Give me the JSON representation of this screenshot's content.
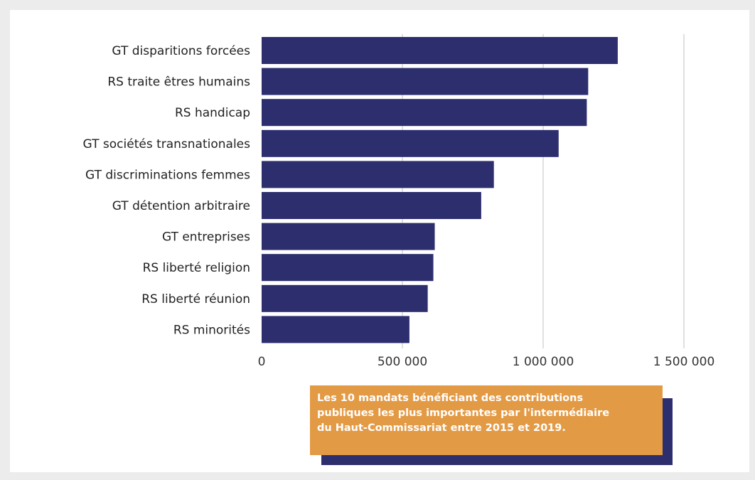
{
  "chart_data": {
    "type": "bar",
    "orientation": "horizontal",
    "categories": [
      "GT disparitions forcées",
      "RS traite êtres humains",
      "RS handicap",
      "GT sociétés transnationales",
      "GT discriminations femmes",
      "GT détention arbitraire",
      "GT entreprises",
      "RS liberté religion",
      "RS liberté réunion",
      "RS minorités"
    ],
    "values": [
      1265000,
      1160000,
      1155000,
      1055000,
      825000,
      780000,
      615000,
      610000,
      590000,
      525000
    ],
    "xlim": [
      0,
      1500000
    ],
    "xticks": [
      0,
      500000,
      1000000,
      1500000
    ],
    "xtick_labels": [
      "0",
      "500 000",
      "1 000 000",
      "1 500 000"
    ],
    "grid": "vertical",
    "bar_color": "#2d2e6e",
    "title": "",
    "xlabel": "",
    "ylabel": ""
  },
  "caption": {
    "lines": [
      "Les 10 mandats bénéficiant des contributions",
      "publiques les plus importantes par l'intermédiaire",
      "du Haut-Commissariat entre 2015 et 2019."
    ],
    "background_color": "#e39a45",
    "shadow_color": "#2d2e6e"
  }
}
